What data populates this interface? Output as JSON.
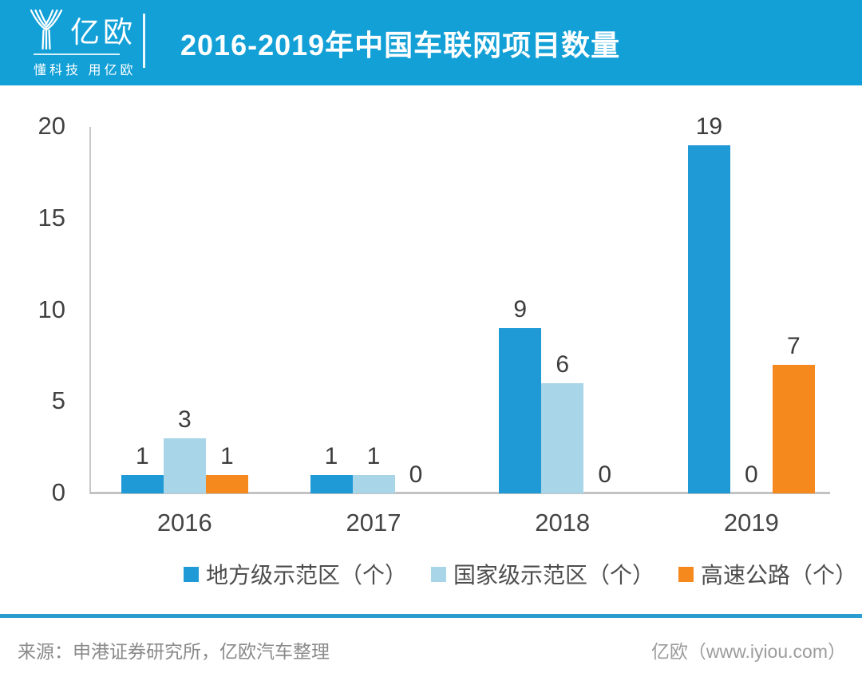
{
  "header": {
    "logo_text": "亿欧",
    "tagline": "懂科技 用亿欧",
    "title": "2016-2019年中国车联网项目数量",
    "colors": {
      "background": "#12A0D7",
      "title": "#FFFFFF"
    }
  },
  "chart_data": {
    "type": "bar",
    "title": "2016-2019年中国车联网项目数量",
    "categories": [
      "2016",
      "2017",
      "2018",
      "2019"
    ],
    "series": [
      {
        "name": "地方级示范区（个）",
        "color": "#1F9AD6",
        "values": [
          1,
          1,
          9,
          19
        ]
      },
      {
        "name": "国家级示范区（个）",
        "color": "#A9D5E9",
        "values": [
          3,
          1,
          6,
          0
        ]
      },
      {
        "name": "高速公路（个）",
        "color": "#F6891E",
        "values": [
          1,
          0,
          0,
          7
        ]
      }
    ],
    "ylim": [
      0,
      20
    ],
    "yticks": [
      0,
      5,
      10,
      15,
      20
    ],
    "grid": false,
    "value_labels": true,
    "legend_position": "bottom",
    "axis_color": "#C8C8C8",
    "label_color": "#3C3C3C"
  },
  "footer": {
    "source": "来源：申港证券研究所，亿欧汽车整理",
    "site": "亿欧（www.iyiou.com）"
  }
}
